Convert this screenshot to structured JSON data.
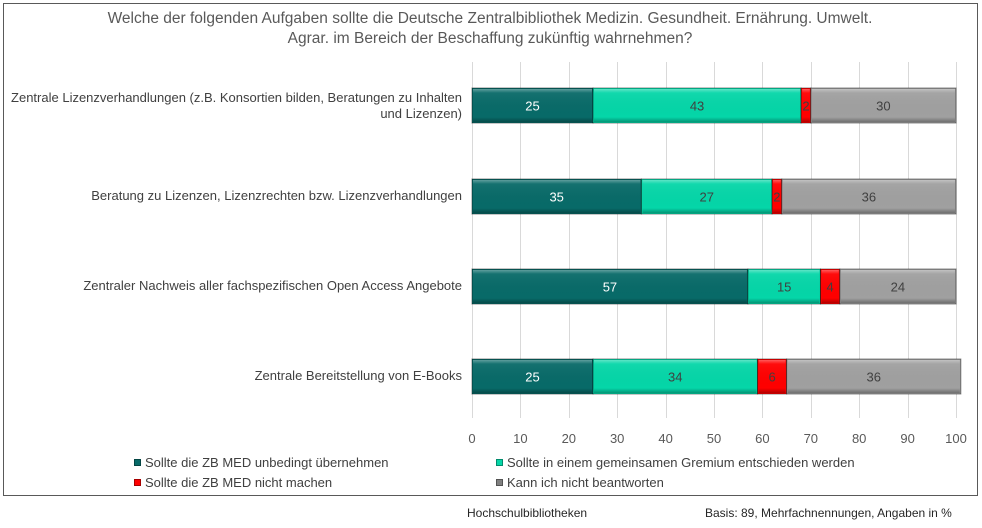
{
  "chart_data": {
    "type": "bar",
    "orientation": "horizontal",
    "stacked": true,
    "title": "Welche der folgenden Aufgaben sollte die Deutsche Zentralbibliothek Medizin. Gesundheit. Ernährung. Umwelt. Agrar. im Bereich der Beschaffung zukünftig wahrnehmen?",
    "title_lines": [
      "Welche der folgenden Aufgaben sollte die Deutsche Zentralbibliothek Medizin. Gesundheit. Ernährung. Umwelt.",
      "Agrar. im Bereich der Beschaffung zukünftig wahrnehmen?"
    ],
    "categories": [
      "Zentrale Lizenzverhandlungen (z.B. Konsortien bilden, Beratungen zu Inhalten und Lizenzen)",
      "Beratung zu Lizenzen, Lizenzrechten bzw. Lizenzverhandlungen",
      "Zentraler Nachweis aller fachspezifischen Open Access Angebote",
      "Zentrale Bereitstellung von E-Books"
    ],
    "category_lines": [
      [
        "Zentrale Lizenzverhandlungen (z.B. Konsortien bilden, Beratungen zu Inhalten",
        "und Lizenzen)"
      ],
      [
        "Beratung zu Lizenzen, Lizenzrechten bzw. Lizenzverhandlungen"
      ],
      [
        "Zentraler Nachweis aller fachspezifischen Open Access Angebote"
      ],
      [
        "Zentrale Bereitstellung von E-Books"
      ]
    ],
    "series": [
      {
        "name": "Sollte die ZB MED unbedingt übernehmen",
        "color": "#086A68",
        "label_color": "#ffffff",
        "values": [
          25,
          35,
          57,
          25
        ]
      },
      {
        "name": "Sollte in einem gemeinsamen Gremium entschieden werden",
        "color": "#05D6A8",
        "label_color": "#404040",
        "values": [
          43,
          27,
          15,
          34
        ]
      },
      {
        "name": "Sollte die ZB MED nicht machen",
        "color": "#FF0000",
        "label_color": "#404040",
        "values": [
          2,
          2,
          4,
          6
        ]
      },
      {
        "name": "Kann ich nicht beantworten",
        "color": "#A0A0A0",
        "label_color": "#404040",
        "values": [
          30,
          36,
          24,
          36
        ]
      }
    ],
    "xlabel": "",
    "ylabel": "",
    "xlim": [
      0,
      100
    ],
    "xticks": [
      0,
      10,
      20,
      30,
      40,
      50,
      60,
      70,
      80,
      90,
      100
    ],
    "grid": true,
    "legend_position": "bottom"
  },
  "footer": {
    "group": "Hochschulbibliotheken",
    "basis": "Basis: 89, Mehrfachnennungen, Angaben in %"
  }
}
